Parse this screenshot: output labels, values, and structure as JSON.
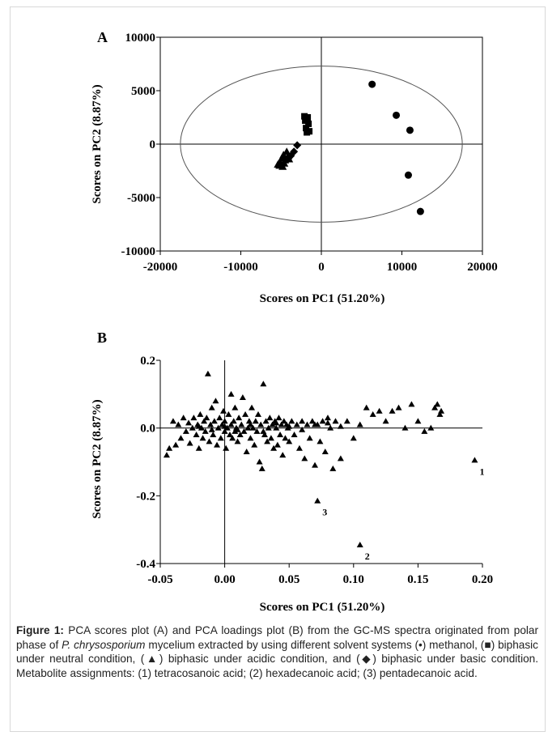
{
  "chart_data": [
    {
      "panel": "A",
      "type": "scatter",
      "xlabel": "Scores on PC1 (51.20%)",
      "ylabel": "Scores on PC2 (8.87%)",
      "xlim": [
        -20000,
        20000
      ],
      "ylim": [
        -10000,
        10000
      ],
      "xticks": [
        "-20000",
        "-10000",
        "0",
        "10000",
        "20000"
      ],
      "yticks": [
        "10000",
        "5000",
        "0",
        "-5000",
        "-10000"
      ],
      "ellipse": {
        "cx": 0,
        "cy": 0,
        "rx": 17500,
        "ry": 7300
      },
      "series": [
        {
          "marker": "circle",
          "points": [
            [
              6300,
              5600
            ],
            [
              9300,
              2700
            ],
            [
              11000,
              1300
            ],
            [
              10800,
              -2900
            ],
            [
              12300,
              -6300
            ]
          ]
        },
        {
          "marker": "square",
          "points": [
            [
              -2100,
              2600
            ],
            [
              -1700,
              2500
            ],
            [
              -2000,
              2200
            ],
            [
              -1600,
              1900
            ],
            [
              -1900,
              1500
            ],
            [
              -1500,
              1200
            ],
            [
              -1800,
              1100
            ]
          ]
        },
        {
          "marker": "triangle",
          "points": [
            [
              -4300,
              -700
            ],
            [
              -4700,
              -1000
            ],
            [
              -4100,
              -1100
            ],
            [
              -4900,
              -1300
            ],
            [
              -4500,
              -1500
            ],
            [
              -4000,
              -1400
            ],
            [
              -5100,
              -1700
            ],
            [
              -4600,
              -1800
            ],
            [
              -5200,
              -2000
            ],
            [
              -4800,
              -2100
            ],
            [
              -5400,
              -1900
            ]
          ]
        },
        {
          "marker": "diamond",
          "points": [
            [
              -3000,
              -100
            ],
            [
              -3400,
              -700
            ],
            [
              -3800,
              -1100
            ]
          ]
        }
      ]
    },
    {
      "panel": "B",
      "type": "scatter",
      "xlabel": "Scores on PC1 (51.20%)",
      "ylabel": "Scores on PC2 (8.87%)",
      "xlim": [
        -0.05,
        0.2
      ],
      "ylim": [
        -0.4,
        0.2
      ],
      "xticks": [
        "-0.05",
        "0.00",
        "0.05",
        "0.10",
        "0.15",
        "0.20"
      ],
      "yticks": [
        "0.2",
        "0.0",
        "-0.2",
        "-0.4"
      ],
      "marker": "triangle",
      "labeled_points": [
        {
          "x": 0.194,
          "y": -0.095,
          "label": "1"
        },
        {
          "x": 0.105,
          "y": -0.345,
          "label": "2"
        },
        {
          "x": 0.072,
          "y": -0.215,
          "label": "3"
        }
      ],
      "points": [
        [
          -0.045,
          -0.08
        ],
        [
          -0.043,
          -0.06
        ],
        [
          -0.04,
          0.02
        ],
        [
          -0.038,
          -0.05
        ],
        [
          -0.036,
          0.01
        ],
        [
          -0.034,
          -0.03
        ],
        [
          -0.032,
          0.03
        ],
        [
          -0.03,
          -0.01
        ],
        [
          -0.028,
          0.015
        ],
        [
          -0.027,
          -0.045
        ],
        [
          -0.025,
          0.0
        ],
        [
          -0.024,
          0.03
        ],
        [
          -0.022,
          -0.02
        ],
        [
          -0.021,
          0.01
        ],
        [
          -0.02,
          -0.06
        ],
        [
          -0.019,
          0.04
        ],
        [
          -0.018,
          0.0
        ],
        [
          -0.017,
          -0.03
        ],
        [
          -0.016,
          0.02
        ],
        [
          -0.015,
          -0.01
        ],
        [
          -0.014,
          0.03
        ],
        [
          -0.013,
          0.16
        ],
        [
          -0.012,
          -0.04
        ],
        [
          -0.011,
          0.01
        ],
        [
          -0.01,
          0.06
        ],
        [
          -0.009,
          -0.02
        ],
        [
          -0.008,
          0.02
        ],
        [
          -0.007,
          0.08
        ],
        [
          -0.006,
          -0.05
        ],
        [
          -0.005,
          0.0
        ],
        [
          -0.004,
          0.03
        ],
        [
          -0.003,
          -0.03
        ],
        [
          -0.002,
          0.01
        ],
        [
          -0.001,
          0.05
        ],
        [
          0.0,
          -0.01
        ],
        [
          0.0,
          0.02
        ],
        [
          0.001,
          -0.06
        ],
        [
          0.002,
          0.0
        ],
        [
          0.003,
          0.04
        ],
        [
          0.004,
          -0.02
        ],
        [
          0.005,
          0.01
        ],
        [
          0.005,
          0.1
        ],
        [
          0.006,
          -0.03
        ],
        [
          0.007,
          0.02
        ],
        [
          0.008,
          -0.01
        ],
        [
          0.008,
          0.06
        ],
        [
          0.009,
          0.0
        ],
        [
          0.01,
          -0.04
        ],
        [
          0.011,
          0.03
        ],
        [
          0.012,
          -0.02
        ],
        [
          0.013,
          0.01
        ],
        [
          0.014,
          0.09
        ],
        [
          0.015,
          -0.01
        ],
        [
          0.016,
          0.04
        ],
        [
          0.017,
          -0.07
        ],
        [
          0.018,
          0.0
        ],
        [
          0.019,
          0.02
        ],
        [
          0.02,
          -0.03
        ],
        [
          0.021,
          0.06
        ],
        [
          0.022,
          0.0
        ],
        [
          0.023,
          -0.05
        ],
        [
          0.024,
          0.02
        ],
        [
          0.025,
          -0.01
        ],
        [
          0.026,
          0.04
        ],
        [
          0.027,
          -0.1
        ],
        [
          0.028,
          0.01
        ],
        [
          0.029,
          -0.12
        ],
        [
          0.03,
          0.13
        ],
        [
          0.031,
          -0.02
        ],
        [
          0.032,
          0.02
        ],
        [
          0.033,
          -0.04
        ],
        [
          0.034,
          0.0
        ],
        [
          0.035,
          0.03
        ],
        [
          0.036,
          -0.03
        ],
        [
          0.037,
          0.01
        ],
        [
          0.038,
          -0.06
        ],
        [
          0.039,
          0.02
        ],
        [
          0.04,
          0.0
        ],
        [
          0.041,
          -0.05
        ],
        [
          0.042,
          0.03
        ],
        [
          0.043,
          -0.02
        ],
        [
          0.044,
          0.01
        ],
        [
          0.045,
          -0.08
        ],
        [
          0.046,
          0.02
        ],
        [
          0.047,
          -0.03
        ],
        [
          0.048,
          0.01
        ],
        [
          0.049,
          0.0
        ],
        [
          0.05,
          -0.04
        ],
        [
          0.052,
          0.02
        ],
        [
          0.054,
          -0.02
        ],
        [
          0.056,
          0.01
        ],
        [
          0.058,
          -0.06
        ],
        [
          0.06,
          0.02
        ],
        [
          0.062,
          -0.09
        ],
        [
          0.064,
          0.01
        ],
        [
          0.066,
          -0.03
        ],
        [
          0.068,
          0.02
        ],
        [
          0.07,
          -0.11
        ],
        [
          0.072,
          0.01
        ],
        [
          0.074,
          -0.04
        ],
        [
          0.076,
          0.02
        ],
        [
          0.078,
          -0.07
        ],
        [
          0.08,
          0.03
        ],
        [
          0.082,
          0.0
        ],
        [
          0.084,
          -0.12
        ],
        [
          0.086,
          0.02
        ],
        [
          0.09,
          -0.09
        ],
        [
          0.095,
          0.02
        ],
        [
          0.1,
          -0.03
        ],
        [
          0.105,
          0.01
        ],
        [
          0.11,
          0.06
        ],
        [
          0.115,
          0.04
        ],
        [
          0.12,
          0.05
        ],
        [
          0.125,
          0.02
        ],
        [
          0.13,
          0.05
        ],
        [
          0.135,
          0.06
        ],
        [
          0.14,
          0.0
        ],
        [
          0.145,
          0.07
        ],
        [
          0.15,
          0.02
        ],
        [
          0.155,
          -0.01
        ],
        [
          0.16,
          0.0
        ],
        [
          0.163,
          0.06
        ],
        [
          0.165,
          0.07
        ],
        [
          0.167,
          0.04
        ],
        [
          0.168,
          0.05
        ],
        [
          -0.02,
          0.005
        ],
        [
          -0.01,
          -0.005
        ],
        [
          0.0,
          0.005
        ],
        [
          0.01,
          -0.005
        ],
        [
          0.02,
          0.01
        ],
        [
          0.03,
          -0.01
        ],
        [
          0.04,
          0.015
        ],
        [
          0.05,
          0.005
        ],
        [
          0.06,
          -0.005
        ],
        [
          0.07,
          0.01
        ],
        [
          0.08,
          0.015
        ],
        [
          0.09,
          0.005
        ]
      ]
    }
  ],
  "caption": {
    "fig_label": "Figure 1:",
    "part1": " PCA scores plot (A) and PCA loadings plot (B) from the GC-MS spectra originated from polar phase of ",
    "species": "P. chrysosporium",
    "part2": " mycelium extracted by using different solvent systems (•) methanol, (■) biphasic under neutral condition, (▲) biphasic under acidic condition, and (◆) biphasic under basic condition. Metabolite assignments: (1) tetracosanoic acid; (2) hexadecanoic acid; (3) pentadecanoic acid."
  }
}
